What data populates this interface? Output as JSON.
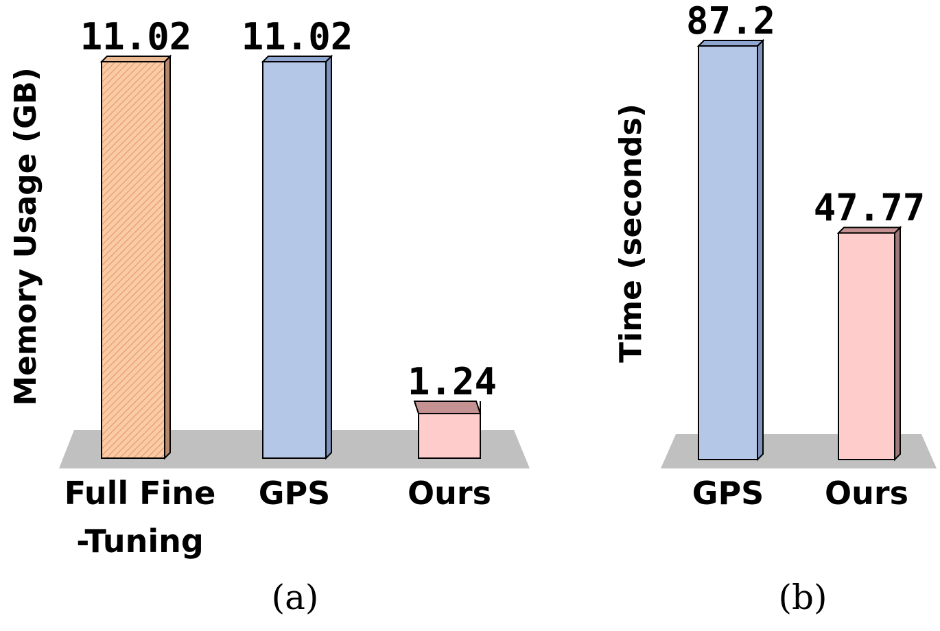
{
  "colors": {
    "floor": "#c0c0c0",
    "full_front": "#f9cba6",
    "full_hatch": "#e89a6a",
    "full_top": "#e9b993",
    "full_side": "#b8866a",
    "gps_front": "#b4c7e7",
    "gps_top": "#8fa6d0",
    "gps_side": "#7d93b9",
    "ours_front": "#ffcccc",
    "ours_top": "#c49292",
    "ours_side": "#a07a7a",
    "outline": "#000000"
  },
  "chart_data": [
    {
      "type": "bar",
      "panel_label": "(a)",
      "ylabel": "Memory Usage (GB)",
      "categories": [
        "Full Fine-Tuning",
        "GPS",
        "Ours"
      ],
      "category_lines": [
        [
          "Full Fine",
          "-Tuning"
        ],
        [
          "GPS"
        ],
        [
          "Ours"
        ]
      ],
      "values": [
        11.02,
        11.02,
        1.24
      ],
      "value_labels": [
        "11.02",
        "11.02",
        "1.24"
      ],
      "styles": [
        "full",
        "gps",
        "ours"
      ],
      "hatched": [
        true,
        false,
        false
      ],
      "grid": false,
      "legend": "none"
    },
    {
      "type": "bar",
      "panel_label": "(b)",
      "ylabel": "Time (seconds)",
      "categories": [
        "GPS",
        "Ours"
      ],
      "category_lines": [
        [
          "GPS"
        ],
        [
          "Ours"
        ]
      ],
      "values": [
        87.2,
        47.77
      ],
      "value_labels": [
        "87.2",
        "47.77"
      ],
      "styles": [
        "gps",
        "ours"
      ],
      "hatched": [
        false,
        false
      ],
      "grid": false,
      "legend": "none"
    }
  ]
}
